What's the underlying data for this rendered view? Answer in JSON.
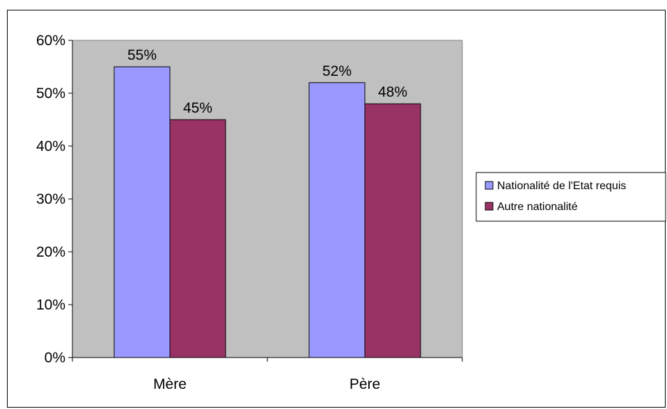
{
  "chart_data": {
    "type": "bar",
    "title": "",
    "xlabel": "",
    "ylabel": "",
    "categories": [
      "Mère",
      "Père"
    ],
    "series": [
      {
        "name": "Nationalité de l'Etat requis",
        "values": [
          55,
          52
        ],
        "labels": [
          "55%",
          "52%"
        ],
        "color": "#9999ff"
      },
      {
        "name": "Autre nationalité",
        "values": [
          45,
          48
        ],
        "labels": [
          "45%",
          "48%"
        ],
        "color": "#993366"
      }
    ],
    "ylim": [
      0,
      60
    ],
    "yticks": [
      0,
      10,
      20,
      30,
      40,
      50,
      60
    ],
    "ytick_labels": [
      "0%",
      "10%",
      "20%",
      "30%",
      "40%",
      "50%",
      "60%"
    ],
    "grid": false,
    "plot_background": "#c0c0c0",
    "legend_position": "right"
  }
}
